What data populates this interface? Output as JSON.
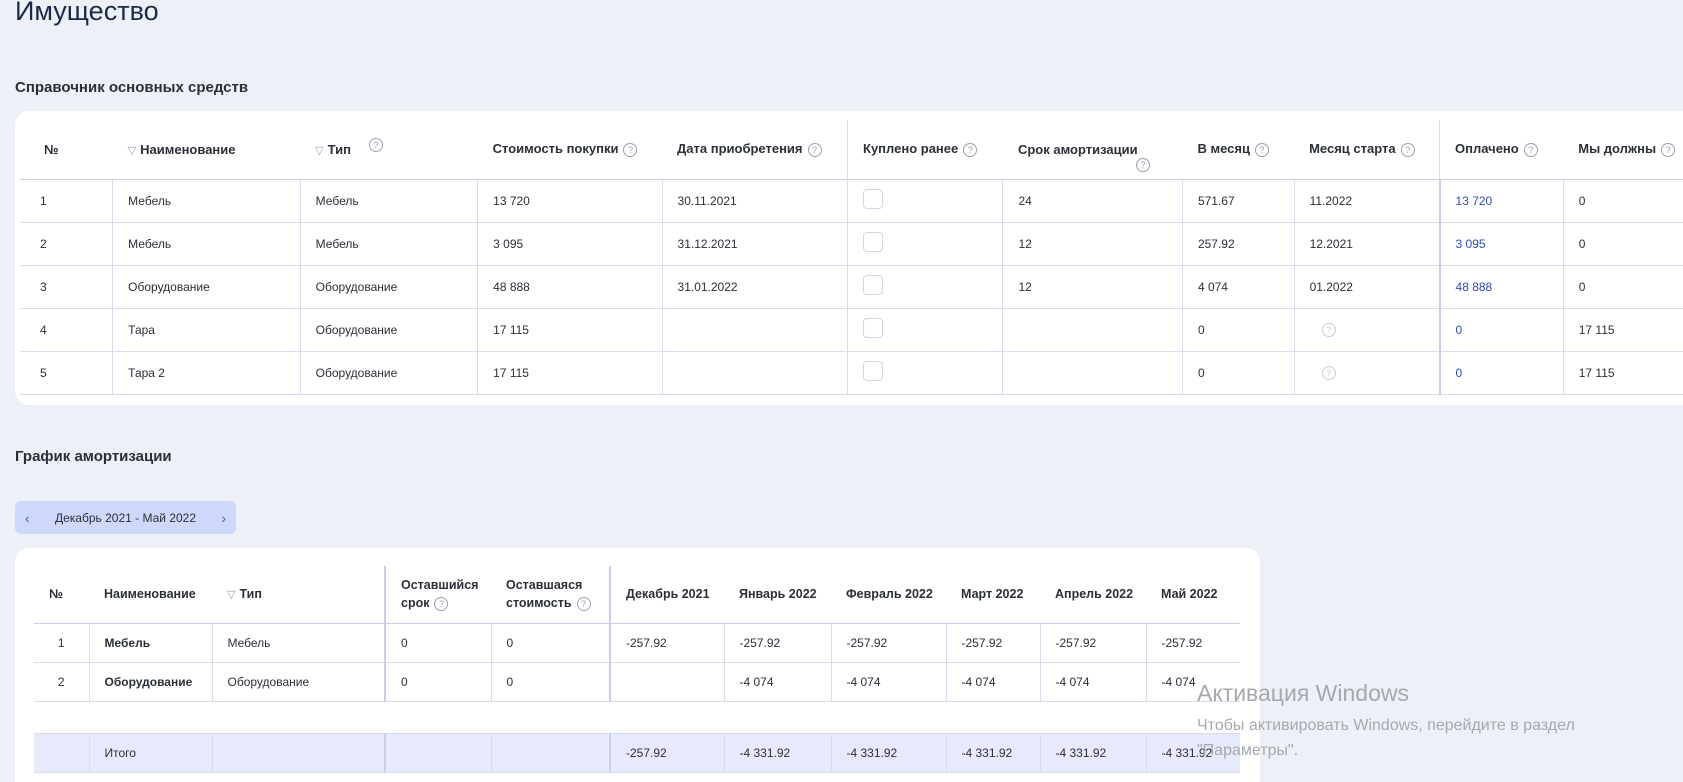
{
  "page": {
    "title": "Имущество"
  },
  "assets": {
    "title": "Справочник основных средств",
    "headers": {
      "num": "№",
      "name": "Наименование",
      "type": "Тип",
      "cost": "Стоимость покупки",
      "date": "Дата приобретения",
      "bought_earlier": "Куплено ранее",
      "term": "Срок амортизации",
      "per_month": "В месяц",
      "start_month": "Месяц старта",
      "paid": "Оплачено",
      "we_owe": "Мы должны"
    },
    "rows": [
      {
        "num": "1",
        "name": "Мебель",
        "type": "Мебель",
        "cost": "13 720",
        "date": "30.11.2021",
        "term": "24",
        "per_month": "571.67",
        "start_month": "11.2022",
        "paid": "13 720",
        "we_owe": "0"
      },
      {
        "num": "2",
        "name": "Мебель",
        "type": "Мебель",
        "cost": "3 095",
        "date": "31.12.2021",
        "term": "12",
        "per_month": "257.92",
        "start_month": "12.2021",
        "paid": "3 095",
        "we_owe": "0"
      },
      {
        "num": "3",
        "name": "Оборудование",
        "type": "Оборудование",
        "cost": "48 888",
        "date": "31.01.2022",
        "term": "12",
        "per_month": "4 074",
        "start_month": "01.2022",
        "paid": "48 888",
        "we_owe": "0"
      },
      {
        "num": "4",
        "name": "Тара",
        "type": "Оборудование",
        "cost": "17 115",
        "date": "",
        "term": "",
        "per_month": "0",
        "start_month": "",
        "paid": "0",
        "we_owe": "17 115"
      },
      {
        "num": "5",
        "name": "Тара 2",
        "type": "Оборудование",
        "cost": "17 115",
        "date": "",
        "term": "",
        "per_month": "0",
        "start_month": "",
        "paid": "0",
        "we_owe": "17 115"
      }
    ]
  },
  "schedule": {
    "title": "График амортизации",
    "period": "Декабрь 2021 - Май 2022",
    "headers": {
      "num": "№",
      "name": "Наименование",
      "type": "Тип",
      "remaining_term_1": "Оставшийся",
      "remaining_term_2": "срок",
      "remaining_cost_1": "Оставшаяся",
      "remaining_cost_2": "стоимость",
      "months": [
        "Декабрь 2021",
        "Январь 2022",
        "Февраль 2022",
        "Март 2022",
        "Апрель 2022",
        "Май 2022"
      ]
    },
    "rows": [
      {
        "num": "1",
        "name": "Мебель",
        "type": "Мебель",
        "remaining_term": "0",
        "remaining_cost": "0",
        "values": [
          "-257.92",
          "-257.92",
          "-257.92",
          "-257.92",
          "-257.92",
          "-257.92"
        ]
      },
      {
        "num": "2",
        "name": "Оборудование",
        "type": "Оборудование",
        "remaining_term": "0",
        "remaining_cost": "0",
        "values": [
          "",
          "-4 074",
          "-4 074",
          "-4 074",
          "-4 074",
          "-4 074"
        ]
      }
    ],
    "total": {
      "label": "Итого",
      "values": [
        "-257.92",
        "-4 331.92",
        "-4 331.92",
        "-4 331.92",
        "-4 331.92",
        "-4 331.92"
      ]
    }
  },
  "watermark": {
    "title": "Активация Windows",
    "line1": "Чтобы активировать Windows, перейдите в раздел",
    "line2": "\"Параметры\"."
  },
  "icons": {
    "help": "?",
    "filter": "▽",
    "prev": "‹",
    "next": "›"
  }
}
